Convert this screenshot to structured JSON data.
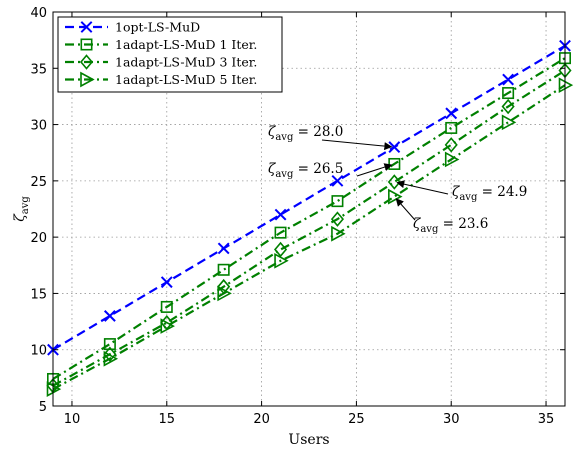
{
  "chart_data": {
    "type": "line",
    "xlabel": "Users",
    "ylabel": "ζ",
    "ylabel_sub": "avg",
    "xlim": [
      9,
      36
    ],
    "ylim": [
      5,
      40
    ],
    "xticks": [
      10,
      15,
      20,
      25,
      30,
      35
    ],
    "yticks": [
      5,
      10,
      15,
      20,
      25,
      30,
      35,
      40
    ],
    "grid": true,
    "legend_position": "top-left",
    "x": [
      9,
      12,
      15,
      18,
      21,
      24,
      27,
      30,
      33,
      36
    ],
    "series": [
      {
        "name": "1opt-LS-MuD",
        "color": "#0000ff",
        "marker": "x",
        "dash": "dashed",
        "values": [
          10,
          13,
          16,
          19,
          22,
          25,
          28,
          31,
          34,
          37
        ]
      },
      {
        "name": "1adapt-LS-MuD 1 Iter.",
        "color": "#008000",
        "marker": "square",
        "dash": "dashdot",
        "values": [
          7.4,
          10.5,
          13.8,
          17.1,
          20.4,
          23.2,
          26.5,
          29.7,
          32.8,
          35.9
        ]
      },
      {
        "name": "1adapt-LS-MuD 3 Iter.",
        "color": "#008000",
        "marker": "diamond",
        "dash": "dashdot",
        "values": [
          6.8,
          9.6,
          12.4,
          15.6,
          18.9,
          21.6,
          24.9,
          28.2,
          31.6,
          34.8
        ]
      },
      {
        "name": "1adapt-LS-MuD 5 Iter.",
        "color": "#008000",
        "marker": "triangle-right",
        "dash": "dashdot",
        "values": [
          6.5,
          9.2,
          12.1,
          15.0,
          17.9,
          20.3,
          23.6,
          26.9,
          30.2,
          33.5
        ]
      }
    ],
    "annotations": [
      {
        "symbol": "ζ",
        "sub": "avg",
        "rest": " = 28.0",
        "value": 28.0
      },
      {
        "symbol": "ζ",
        "sub": "avg",
        "rest": " = 26.5",
        "value": 26.5
      },
      {
        "symbol": "ζ",
        "sub": "avg",
        "rest": " = 24.9",
        "value": 24.9
      },
      {
        "symbol": "ζ",
        "sub": "avg",
        "rest": " = 23.6",
        "value": 23.6
      }
    ]
  }
}
